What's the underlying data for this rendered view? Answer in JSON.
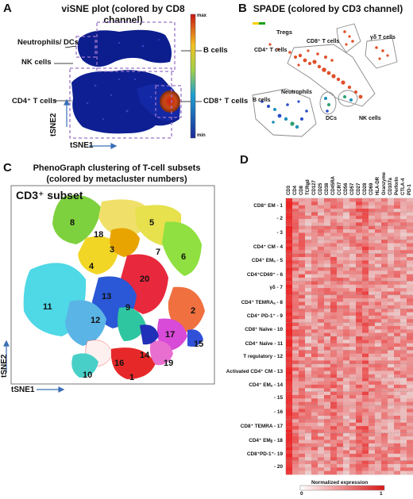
{
  "panelA": {
    "letter": "A",
    "title": "viSNE plot (colored by CD8 channel)",
    "labels": [
      "Neutrophils/ DCs",
      "NK cells",
      "CD4⁺ T cells",
      "B cells",
      "CD8⁺ T cells"
    ],
    "xaxis": "tSNE1",
    "yaxis": "tSNE2",
    "scale_max": "max",
    "scale_min": "min"
  },
  "panelB": {
    "letter": "B",
    "title": "SPADE (colored by CD3 channel)",
    "labels": [
      "Tregs",
      "CD8⁺ T cells",
      "γδ T cells",
      "CD4⁺ T cells",
      "Neutrophils",
      "B cells",
      "DCs",
      "NK cells"
    ]
  },
  "panelC": {
    "letter": "C",
    "title_line1": "PhenoGraph clustering of T-cell subsets",
    "title_line2": "(colored by metacluster numbers)",
    "subset": "CD3⁺ subset",
    "xaxis": "tSNE1",
    "yaxis": "tSNE2",
    "clusters": [
      "1",
      "2",
      "3",
      "4",
      "5",
      "6",
      "7",
      "8",
      "9",
      "10",
      "11",
      "12",
      "13",
      "14",
      "15",
      "16",
      "17",
      "18",
      "19",
      "20"
    ]
  },
  "panelD": {
    "letter": "D",
    "markers": [
      "CD3",
      "CD4",
      "CD8",
      "TCRgd",
      "CD127",
      "CD25",
      "CD38",
      "CD45RA",
      "CCR7",
      "CD56",
      "CD57",
      "CD27",
      "CD28",
      "CD69",
      "HLA-DR",
      "Granzyme",
      "CD107a",
      "Perforin",
      "CTLA-4",
      "PD-1"
    ],
    "rows": [
      "CD8⁺ EM - 1",
      "- 2",
      "- 3",
      "CD4⁺ CM - 4",
      "CD4⁺ EMₐ - 5",
      "CD4⁺CD69⁺ - 6",
      "γδ - 7",
      "CD4⁺ TEMRAₐ - 8",
      "CD4⁺ PD-1⁺ - 9",
      "CD8⁺ Naïve - 10",
      "CD4⁺ Naïve - 11",
      "T regulatory - 12",
      "Activated CD4⁺ CM - 13",
      "CD4⁺ EMₐ - 14",
      "- 15",
      "- 16",
      "CD8⁺ TEMRA - 17",
      "CD4⁺ EMᵦ - 18",
      "CD8⁺PD-1⁺- 19",
      "- 20"
    ],
    "legend_title": "Normalized expression",
    "legend_min": "0",
    "legend_max": "1"
  }
}
